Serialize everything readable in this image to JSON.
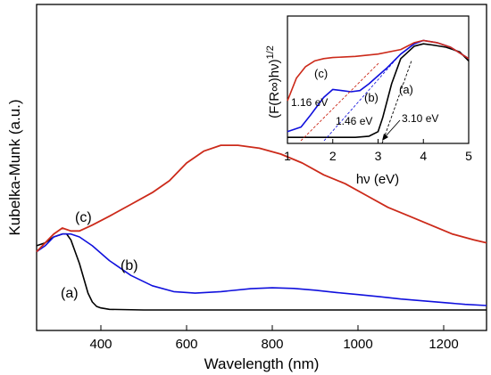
{
  "chart_data": [
    {
      "type": "line",
      "xlabel": "Wavelength (nm)",
      "ylabel": "Kubelka-Munk (a.u.)",
      "xlim": [
        250,
        1300
      ],
      "ylim": [
        0,
        1
      ],
      "x_ticks": [
        "400",
        "600",
        "800",
        "1000",
        "1200"
      ],
      "y_ticks": [],
      "grid": false,
      "series": [
        {
          "name": "(a)",
          "color": "#000000",
          "x": [
            250,
            270,
            290,
            310,
            320,
            330,
            340,
            350,
            360,
            370,
            380,
            390,
            400,
            420,
            500,
            700,
            1300
          ],
          "y": [
            0.22,
            0.23,
            0.25,
            0.26,
            0.26,
            0.24,
            0.2,
            0.16,
            0.11,
            0.06,
            0.03,
            0.015,
            0.01,
            0.005,
            0.003,
            0.003,
            0.003
          ]
        },
        {
          "name": "(b)",
          "color": "#1010dd",
          "x": [
            250,
            270,
            290,
            310,
            330,
            350,
            380,
            420,
            470,
            520,
            570,
            620,
            680,
            750,
            800,
            850,
            900,
            950,
            1000,
            1050,
            1100,
            1150,
            1200,
            1250,
            1300
          ],
          "y": [
            0.2,
            0.22,
            0.25,
            0.26,
            0.26,
            0.25,
            0.22,
            0.17,
            0.12,
            0.085,
            0.065,
            0.06,
            0.065,
            0.075,
            0.078,
            0.076,
            0.07,
            0.062,
            0.055,
            0.048,
            0.04,
            0.034,
            0.028,
            0.022,
            0.018
          ]
        },
        {
          "name": "(c)",
          "color": "#cc2a1a",
          "x": [
            250,
            270,
            290,
            310,
            330,
            350,
            380,
            420,
            470,
            520,
            560,
            600,
            640,
            680,
            720,
            770,
            820,
            870,
            920,
            970,
            1020,
            1070,
            1120,
            1170,
            1220,
            1270,
            1300
          ],
          "y": [
            0.2,
            0.23,
            0.26,
            0.28,
            0.27,
            0.27,
            0.29,
            0.32,
            0.36,
            0.4,
            0.44,
            0.5,
            0.54,
            0.56,
            0.56,
            0.55,
            0.53,
            0.5,
            0.46,
            0.43,
            0.39,
            0.35,
            0.32,
            0.29,
            0.26,
            0.24,
            0.23
          ]
        }
      ]
    },
    {
      "type": "line",
      "xlabel": "hν (eV)",
      "ylabel": "(F(R∞)hν)1/2",
      "xlim": [
        1,
        5
      ],
      "ylim": [
        0,
        1
      ],
      "x_ticks": [
        "1",
        "2",
        "3",
        "4",
        "5"
      ],
      "grid": false,
      "series": [
        {
          "name": "(a)",
          "color": "#000000",
          "x": [
            1,
            1.5,
            2,
            2.5,
            2.8,
            3.0,
            3.1,
            3.3,
            3.5,
            3.8,
            4.0,
            4.2,
            4.5,
            4.8,
            5.0
          ],
          "y": [
            0.03,
            0.03,
            0.03,
            0.03,
            0.04,
            0.08,
            0.2,
            0.5,
            0.72,
            0.83,
            0.85,
            0.84,
            0.82,
            0.78,
            0.7
          ]
        },
        {
          "name": "(b)",
          "color": "#1010dd",
          "x": [
            1,
            1.3,
            1.5,
            1.8,
            2.0,
            2.2,
            2.4,
            2.6,
            2.8,
            3.0,
            3.2,
            3.5,
            3.8,
            4.0,
            4.3,
            4.6,
            5.0
          ],
          "y": [
            0.08,
            0.12,
            0.22,
            0.38,
            0.45,
            0.44,
            0.43,
            0.44,
            0.5,
            0.57,
            0.64,
            0.76,
            0.85,
            0.88,
            0.86,
            0.82,
            0.72
          ]
        },
        {
          "name": "(c)",
          "color": "#cc2a1a",
          "x": [
            1,
            1.2,
            1.4,
            1.6,
            1.8,
            2.0,
            2.5,
            3.0,
            3.5,
            3.8,
            4.0,
            4.3,
            4.6,
            5.0
          ],
          "y": [
            0.35,
            0.55,
            0.65,
            0.7,
            0.72,
            0.73,
            0.74,
            0.76,
            0.8,
            0.86,
            0.88,
            0.86,
            0.82,
            0.72
          ]
        }
      ],
      "annotations": [
        {
          "text": "1.16 eV",
          "color": "#cc2a1a",
          "x": 1.16
        },
        {
          "text": "1.46 eV",
          "color": "#1010dd",
          "x": 1.46
        },
        {
          "text": "3.10 eV",
          "color": "#000000",
          "x": 3.1
        }
      ]
    }
  ]
}
